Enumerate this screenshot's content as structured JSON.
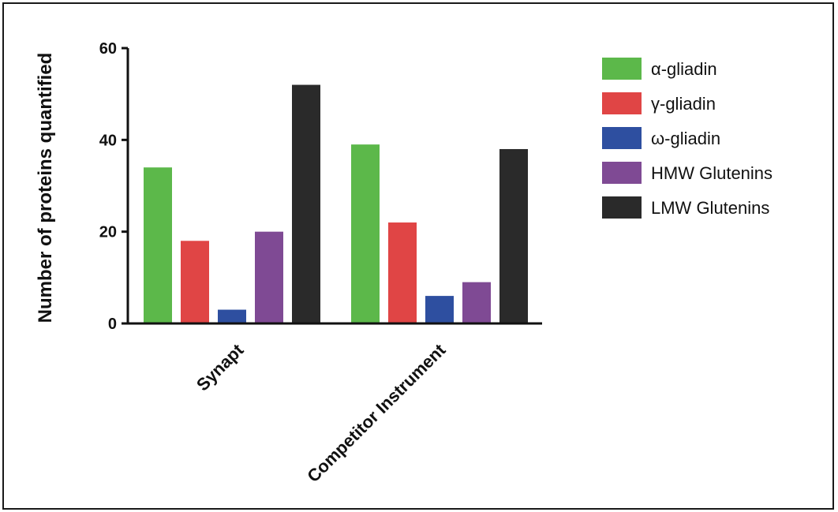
{
  "chart_data": {
    "type": "bar",
    "title": "",
    "xlabel": "",
    "ylabel": "Number of proteins quantified",
    "ylim": [
      0,
      60
    ],
    "yticks": [
      0,
      20,
      40,
      60
    ],
    "grid": false,
    "legend_position": "right",
    "categories": [
      "Synapt",
      "Competitor Instrument"
    ],
    "series": [
      {
        "name": "α-gliadin",
        "color": "#5cb84a",
        "values": [
          34,
          39
        ]
      },
      {
        "name": "γ-gliadin",
        "color": "#e04545",
        "values": [
          18,
          22
        ]
      },
      {
        "name": "ω-gliadin",
        "color": "#2e4fa0",
        "values": [
          3,
          6
        ]
      },
      {
        "name": "HMW Glutenins",
        "color": "#7f4a94",
        "values": [
          20,
          9
        ]
      },
      {
        "name": "LMW Glutenins",
        "color": "#2a2a2a",
        "values": [
          52,
          38
        ]
      }
    ]
  }
}
